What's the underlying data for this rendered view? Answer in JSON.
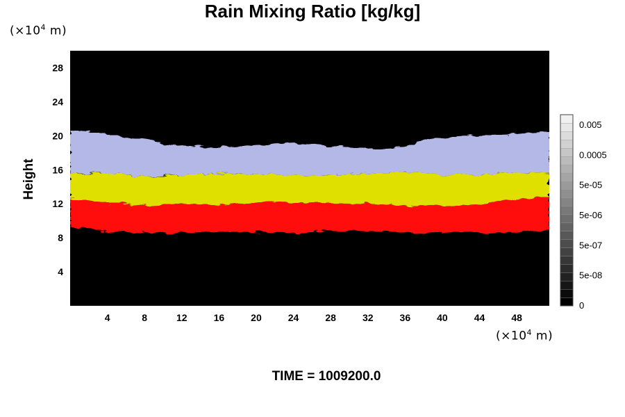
{
  "chart_data": {
    "type": "heatmap",
    "title": "Rain Mixing Ratio [kg/kg]",
    "xlabel": "",
    "ylabel": "Height",
    "x_unit_label": {
      "prefix": "(×10",
      "exp": "4",
      "suffix": " m)"
    },
    "y_unit_label": {
      "prefix": "(×10",
      "exp": "4",
      "suffix": " m)"
    },
    "xlim": [
      0,
      51.5
    ],
    "ylim": [
      0,
      30
    ],
    "x_ticks": [
      4,
      8,
      12,
      16,
      20,
      24,
      28,
      32,
      36,
      40,
      44,
      48
    ],
    "y_ticks": [
      4,
      8,
      12,
      16,
      20,
      24,
      28
    ],
    "background_color": "#000000",
    "bands": [
      {
        "color": "#ff1010",
        "x": [
          0,
          4,
          8,
          12,
          16,
          20,
          24,
          28,
          32,
          36,
          40,
          44,
          48,
          51.5
        ],
        "bottom": [
          9.4,
          8.7,
          8.6,
          8.6,
          8.7,
          8.7,
          8.6,
          8.8,
          8.8,
          8.6,
          8.6,
          8.6,
          8.6,
          9.0
        ],
        "top": [
          12.6,
          12.1,
          11.8,
          12.0,
          11.9,
          12.2,
          12.2,
          12.1,
          12.0,
          11.8,
          11.7,
          11.9,
          12.6,
          12.8
        ]
      },
      {
        "color": "#e0e000",
        "x": [
          0,
          4,
          8,
          12,
          16,
          20,
          24,
          28,
          32,
          36,
          40,
          44,
          48,
          51.5
        ],
        "bottom": [
          12.6,
          12.1,
          11.8,
          12.0,
          11.9,
          12.2,
          12.2,
          12.1,
          12.0,
          11.8,
          11.7,
          11.9,
          12.6,
          12.8
        ],
        "top": [
          15.5,
          15.6,
          15.2,
          15.3,
          15.6,
          15.5,
          15.3,
          15.4,
          15.5,
          15.8,
          15.4,
          15.4,
          15.7,
          15.6
        ]
      },
      {
        "color": "#b4b8e6",
        "x": [
          0,
          2,
          4,
          6,
          8,
          10,
          12,
          16,
          20,
          24,
          28,
          32,
          36,
          38,
          40,
          42,
          44,
          48,
          51.5
        ],
        "bottom": [
          15.5,
          15.6,
          15.6,
          15.4,
          15.2,
          15.3,
          15.3,
          15.6,
          15.5,
          15.3,
          15.4,
          15.5,
          15.8,
          15.6,
          15.4,
          15.4,
          15.4,
          15.7,
          15.6
        ],
        "top": [
          20.7,
          20.5,
          20.2,
          19.8,
          19.6,
          19.1,
          18.9,
          18.6,
          19.0,
          19.2,
          18.8,
          18.5,
          18.7,
          19.5,
          19.8,
          20.0,
          20.0,
          20.2,
          20.5
        ]
      }
    ],
    "colorbar": {
      "labels": [
        "0.005",
        "0.0005",
        "5e-05",
        "5e-06",
        "5e-07",
        "5e-08",
        "0"
      ],
      "colors": [
        "#000000",
        "#0b0b0b",
        "#161616",
        "#212121",
        "#2c2c2c",
        "#373737",
        "#424242",
        "#4d4d4d",
        "#585858",
        "#636363",
        "#6e6e6e",
        "#797979",
        "#848484",
        "#8f8f8f",
        "#9a9a9a",
        "#a5a5a5",
        "#b0b0b0",
        "#bbbbbb",
        "#c6c6c6",
        "#d1d1d1",
        "#dcdcdc",
        "#e7e7e7",
        "#f1f1f1"
      ]
    },
    "grid": false
  },
  "time_label": "TIME = 1009200.0"
}
